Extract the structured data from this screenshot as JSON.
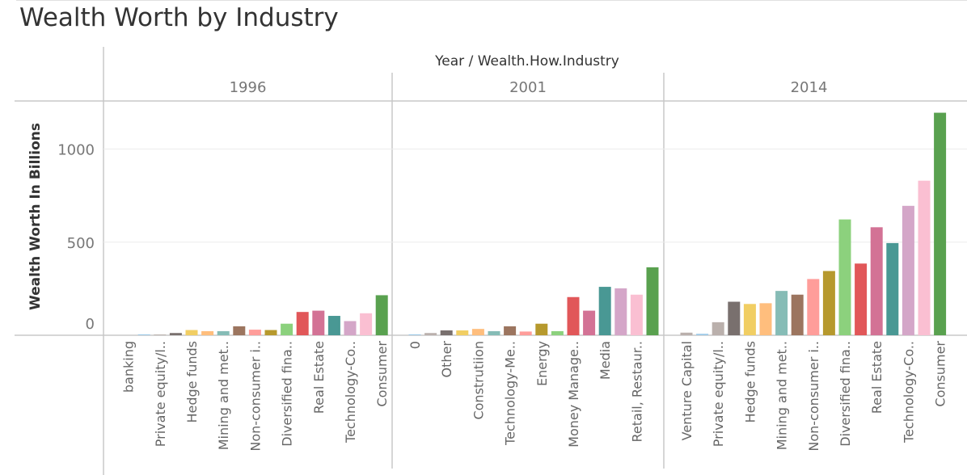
{
  "chart_data": {
    "type": "bar",
    "title": "Wealth Worth by Industry",
    "column_header": "Year / Wealth.How.Industry",
    "ylabel": "Wealth Worth In Billions",
    "ylim": [
      0,
      1200
    ],
    "yticks": [
      0,
      500,
      1000
    ],
    "grid": true,
    "legend": "none",
    "panels": [
      {
        "year": "1996",
        "labels": [
          "",
          "banking",
          "",
          "Private equity/l..",
          "",
          "Hedge funds",
          "",
          "Mining and met..",
          "",
          "Non-consumer i..",
          "",
          "Diversified fina..",
          "",
          "Real Estate",
          "",
          "Technology-Co..",
          "",
          "Consumer"
        ],
        "values": [
          0,
          0,
          5,
          4,
          12,
          28,
          22,
          22,
          48,
          30,
          28,
          62,
          125,
          132,
          104,
          76,
          118,
          215
        ],
        "colors": [
          "#4e79a7",
          "#a0cbe8",
          "#a0cbe8",
          "#bab0ac",
          "#79706e",
          "#f1ce63",
          "#ffbe7d",
          "#86bcb6",
          "#9c755f",
          "#ff9d9a",
          "#b6992d",
          "#8cd17d",
          "#e15759",
          "#d37295",
          "#499894",
          "#d4a6c8",
          "#fabfd2",
          "#59a14f"
        ]
      },
      {
        "year": "2001",
        "labels": [
          "0",
          "",
          "Other",
          "",
          "Construtiion",
          "",
          "Technology-Me..",
          "",
          "Energy",
          "",
          "Money Manage..",
          "",
          "Media",
          "",
          "Retail, Restaur..",
          ""
        ],
        "values": [
          5,
          12,
          26,
          26,
          34,
          22,
          48,
          20,
          62,
          22,
          205,
          132,
          260,
          252,
          218,
          365
        ],
        "colors": [
          "#a0cbe8",
          "#bab0ac",
          "#79706e",
          "#f1ce63",
          "#ffbe7d",
          "#86bcb6",
          "#9c755f",
          "#ff9d9a",
          "#b6992d",
          "#8cd17d",
          "#e15759",
          "#d37295",
          "#499894",
          "#d4a6c8",
          "#fabfd2",
          "#59a14f"
        ]
      },
      {
        "year": "2014",
        "labels": [
          "Venture Capital",
          "",
          "Private equity/l..",
          "",
          "Hedge funds",
          "",
          "Mining and met..",
          "",
          "Non-consumer i..",
          "",
          "Diversified fina..",
          "",
          "Real Estate",
          "",
          "Technology-Co..",
          "",
          "Consumer"
        ],
        "values": [
          14,
          8,
          70,
          180,
          168,
          172,
          238,
          218,
          302,
          345,
          622,
          385,
          580,
          495,
          695,
          830,
          1195
        ],
        "colors": [
          "#bab0ac",
          "#a0cbe8",
          "#bab0ac",
          "#79706e",
          "#f1ce63",
          "#ffbe7d",
          "#86bcb6",
          "#9c755f",
          "#ff9d9a",
          "#b6992d",
          "#8cd17d",
          "#e15759",
          "#d37295",
          "#499894",
          "#d4a6c8",
          "#fabfd2",
          "#59a14f"
        ]
      }
    ]
  }
}
